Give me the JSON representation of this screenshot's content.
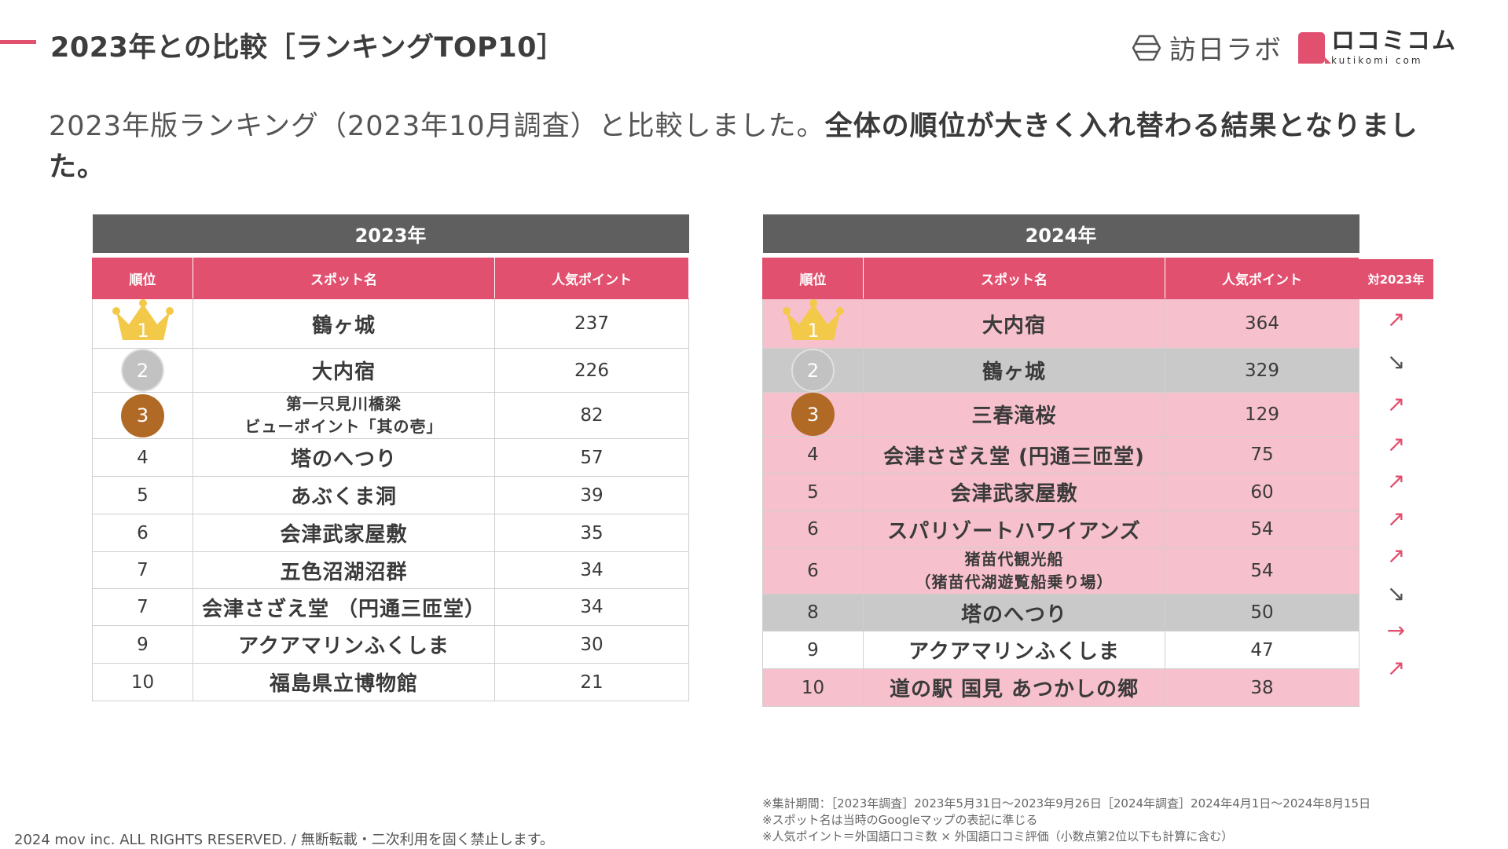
{
  "header": {
    "title": "2023年との比較［ランキングTOP10］",
    "brand_lab": "訪日ラボ",
    "brand_kc_name": "ロコミコム",
    "brand_kc_domain": "kutikomi com"
  },
  "intro": {
    "plain": "2023年版ランキング（2023年10月調査）と比較しました。",
    "bold": "全体の順位が大きく入れ替わる結果となりました。"
  },
  "table_2023": {
    "year": "2023年",
    "columns": [
      "順位",
      "スポット名",
      "人気ポイント"
    ],
    "rows": [
      {
        "rank": "1",
        "name": "鶴ヶ城",
        "points": "237"
      },
      {
        "rank": "2",
        "name": "大内宿",
        "points": "226"
      },
      {
        "rank": "3",
        "name": "第一只見川橋梁",
        "name2": "ビューポイント「其の壱」",
        "points": "82"
      },
      {
        "rank": "4",
        "name": "塔のへつり",
        "points": "57"
      },
      {
        "rank": "5",
        "name": "あぶくま洞",
        "points": "39"
      },
      {
        "rank": "6",
        "name": "会津武家屋敷",
        "points": "35"
      },
      {
        "rank": "7",
        "name": "五色沼湖沼群",
        "points": "34"
      },
      {
        "rank": "7",
        "name": "会津さざえ堂 （円通三匝堂）",
        "points": "34"
      },
      {
        "rank": "9",
        "name": "アクアマリンふくしま",
        "points": "30"
      },
      {
        "rank": "10",
        "name": "福島県立博物館",
        "points": "21"
      }
    ]
  },
  "table_2024": {
    "year": "2024年",
    "columns": [
      "順位",
      "スポット名",
      "人気ポイント"
    ],
    "vs_label": "対2023年",
    "rows": [
      {
        "rank": "1",
        "name": "大内宿",
        "points": "364",
        "trend": "↗"
      },
      {
        "rank": "2",
        "name": "鶴ヶ城",
        "points": "329",
        "trend": "↘"
      },
      {
        "rank": "3",
        "name": "三春滝桜",
        "points": "129",
        "trend": "↗"
      },
      {
        "rank": "4",
        "name": "会津さざえ堂 (円通三匝堂)",
        "points": "75",
        "trend": "↗"
      },
      {
        "rank": "5",
        "name": "会津武家屋敷",
        "points": "60",
        "trend": "↗"
      },
      {
        "rank": "6",
        "name": "スパリゾートハワイアンズ",
        "points": "54",
        "trend": "↗"
      },
      {
        "rank": "6",
        "name": "猪苗代観光船",
        "name2": "（猪苗代湖遊覧船乗り場）",
        "points": "54",
        "trend": "↗"
      },
      {
        "rank": "8",
        "name": "塔のへつり",
        "points": "50",
        "trend": "↘"
      },
      {
        "rank": "9",
        "name": "アクアマリンふくしま",
        "points": "47",
        "trend": "→"
      },
      {
        "rank": "10",
        "name": "道の駅 国見 あつかしの郷",
        "points": "38",
        "trend": "↗"
      }
    ]
  },
  "notes": [
    "※集計期間：［2023年調査］2023年5月31日〜2023年9月26日［2024年調査］2024年4月1日〜2024年8月15日",
    "※スポット名は当時のGoogleマップの表記に準じる",
    "※人気ポイント＝外国語口コミ数 × 外国語口コミ評価（小数点第2位以下も計算に含む）"
  ],
  "footer": "2024 mov inc. ALL RIGHTS RESERVED. / 無断転載・二次利用を固く禁止します。",
  "colors": {
    "accent": "#e2506f",
    "header_grey": "#5f5f5f",
    "row_pink": "#f6c0cc",
    "row_grey": "#c9c9c9",
    "gold": "#f3c94a",
    "silver": "#c2c2c2",
    "bronze": "#b06a25"
  }
}
